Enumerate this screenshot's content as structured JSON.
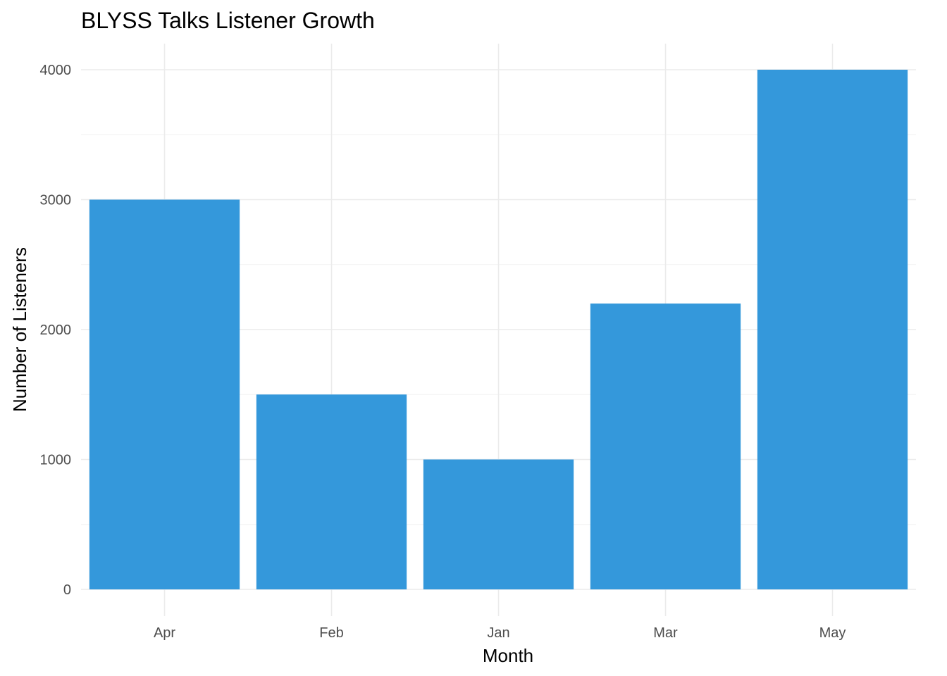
{
  "chart_data": {
    "type": "bar",
    "title": "BLYSS Talks Listener Growth",
    "xlabel": "Month",
    "ylabel": "Number of Listeners",
    "categories": [
      "Apr",
      "Feb",
      "Jan",
      "Mar",
      "May"
    ],
    "values": [
      3000,
      1500,
      1000,
      2200,
      4000
    ],
    "ylim": [
      0,
      4200
    ],
    "yticks": [
      "0",
      "1000",
      "2000",
      "3000",
      "4000"
    ],
    "grid": true,
    "legend": "none",
    "bar_color": "#3498db"
  }
}
